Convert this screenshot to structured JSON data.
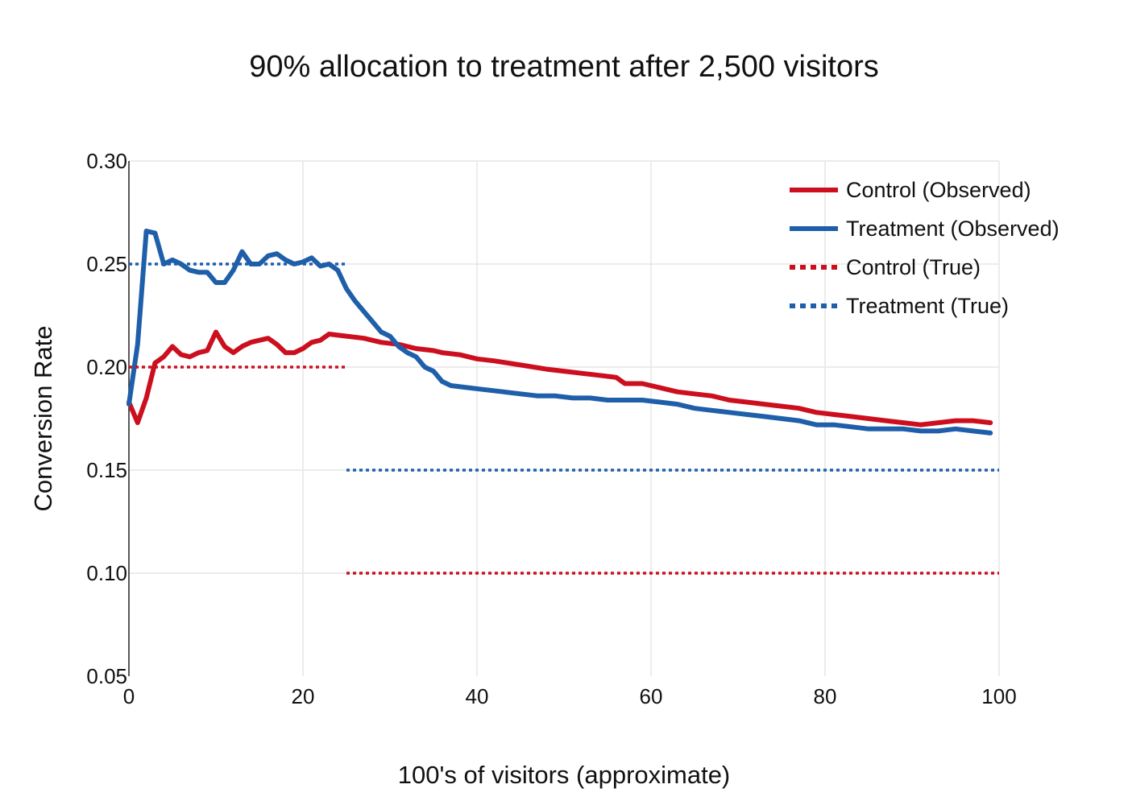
{
  "chart_data": {
    "type": "line",
    "title": "90% allocation to treatment after 2,500 visitors",
    "xlabel": "100's of visitors (approximate)",
    "ylabel": "Conversion Rate",
    "xlim": [
      0,
      100
    ],
    "ylim": [
      0.05,
      0.3
    ],
    "x_ticks": [
      0,
      20,
      40,
      60,
      80,
      100
    ],
    "x_tick_labels": [
      "0",
      "20",
      "40",
      "60",
      "80",
      "100"
    ],
    "y_ticks": [
      0.05,
      0.1,
      0.15,
      0.2,
      0.25,
      0.3
    ],
    "y_tick_labels": [
      "0.05",
      "0.10",
      "0.15",
      "0.20",
      "0.25",
      "0.30"
    ],
    "grid": true,
    "legend_position": "top-right",
    "series": [
      {
        "name": "Control (Observed)",
        "color": "#cc0f1e",
        "style": "solid",
        "points": [
          [
            0,
            0.183
          ],
          [
            1,
            0.173
          ],
          [
            2,
            0.185
          ],
          [
            3,
            0.202
          ],
          [
            4,
            0.205
          ],
          [
            5,
            0.21
          ],
          [
            6,
            0.206
          ],
          [
            7,
            0.205
          ],
          [
            8,
            0.207
          ],
          [
            9,
            0.208
          ],
          [
            10,
            0.217
          ],
          [
            11,
            0.21
          ],
          [
            12,
            0.207
          ],
          [
            13,
            0.21
          ],
          [
            14,
            0.212
          ],
          [
            15,
            0.213
          ],
          [
            16,
            0.214
          ],
          [
            17,
            0.211
          ],
          [
            18,
            0.207
          ],
          [
            19,
            0.207
          ],
          [
            20,
            0.209
          ],
          [
            21,
            0.212
          ],
          [
            22,
            0.213
          ],
          [
            23,
            0.216
          ],
          [
            25,
            0.215
          ],
          [
            27,
            0.214
          ],
          [
            29,
            0.212
          ],
          [
            31,
            0.211
          ],
          [
            33,
            0.209
          ],
          [
            35,
            0.208
          ],
          [
            36,
            0.207
          ],
          [
            38,
            0.206
          ],
          [
            40,
            0.204
          ],
          [
            42,
            0.203
          ],
          [
            45,
            0.201
          ],
          [
            48,
            0.199
          ],
          [
            50,
            0.198
          ],
          [
            52,
            0.197
          ],
          [
            54,
            0.196
          ],
          [
            56,
            0.195
          ],
          [
            57,
            0.192
          ],
          [
            59,
            0.192
          ],
          [
            61,
            0.19
          ],
          [
            63,
            0.188
          ],
          [
            65,
            0.187
          ],
          [
            67,
            0.186
          ],
          [
            69,
            0.184
          ],
          [
            71,
            0.183
          ],
          [
            73,
            0.182
          ],
          [
            75,
            0.181
          ],
          [
            77,
            0.18
          ],
          [
            79,
            0.178
          ],
          [
            81,
            0.177
          ],
          [
            83,
            0.176
          ],
          [
            85,
            0.175
          ],
          [
            87,
            0.174
          ],
          [
            89,
            0.173
          ],
          [
            91,
            0.172
          ],
          [
            93,
            0.173
          ],
          [
            95,
            0.174
          ],
          [
            97,
            0.174
          ],
          [
            99,
            0.173
          ]
        ]
      },
      {
        "name": "Treatment (Observed)",
        "color": "#1f5faa",
        "style": "solid",
        "points": [
          [
            0,
            0.182
          ],
          [
            1,
            0.211
          ],
          [
            2,
            0.266
          ],
          [
            3,
            0.265
          ],
          [
            4,
            0.25
          ],
          [
            5,
            0.252
          ],
          [
            6,
            0.25
          ],
          [
            7,
            0.247
          ],
          [
            8,
            0.246
          ],
          [
            9,
            0.246
          ],
          [
            10,
            0.241
          ],
          [
            11,
            0.241
          ],
          [
            12,
            0.247
          ],
          [
            13,
            0.256
          ],
          [
            14,
            0.25
          ],
          [
            15,
            0.25
          ],
          [
            16,
            0.254
          ],
          [
            17,
            0.255
          ],
          [
            18,
            0.252
          ],
          [
            19,
            0.25
          ],
          [
            20,
            0.251
          ],
          [
            21,
            0.253
          ],
          [
            22,
            0.249
          ],
          [
            23,
            0.25
          ],
          [
            24,
            0.247
          ],
          [
            25,
            0.238
          ],
          [
            26,
            0.232
          ],
          [
            27,
            0.227
          ],
          [
            28,
            0.222
          ],
          [
            29,
            0.217
          ],
          [
            30,
            0.215
          ],
          [
            31,
            0.21
          ],
          [
            32,
            0.207
          ],
          [
            33,
            0.205
          ],
          [
            34,
            0.2
          ],
          [
            35,
            0.198
          ],
          [
            36,
            0.193
          ],
          [
            37,
            0.191
          ],
          [
            39,
            0.19
          ],
          [
            41,
            0.189
          ],
          [
            43,
            0.188
          ],
          [
            45,
            0.187
          ],
          [
            47,
            0.186
          ],
          [
            49,
            0.186
          ],
          [
            51,
            0.185
          ],
          [
            53,
            0.185
          ],
          [
            55,
            0.184
          ],
          [
            57,
            0.184
          ],
          [
            59,
            0.184
          ],
          [
            61,
            0.183
          ],
          [
            63,
            0.182
          ],
          [
            65,
            0.18
          ],
          [
            67,
            0.179
          ],
          [
            69,
            0.178
          ],
          [
            71,
            0.177
          ],
          [
            73,
            0.176
          ],
          [
            75,
            0.175
          ],
          [
            77,
            0.174
          ],
          [
            79,
            0.172
          ],
          [
            81,
            0.172
          ],
          [
            83,
            0.171
          ],
          [
            85,
            0.17
          ],
          [
            87,
            0.17
          ],
          [
            89,
            0.17
          ],
          [
            91,
            0.169
          ],
          [
            93,
            0.169
          ],
          [
            95,
            0.17
          ],
          [
            97,
            0.169
          ],
          [
            99,
            0.168
          ]
        ]
      },
      {
        "name": "Control (True)",
        "color": "#cc0f1e",
        "style": "dotted",
        "segments": [
          [
            [
              0,
              0.2
            ],
            [
              25,
              0.2
            ]
          ],
          [
            [
              25,
              0.1
            ],
            [
              100,
              0.1
            ]
          ]
        ]
      },
      {
        "name": "Treatment (True)",
        "color": "#1f5faa",
        "style": "dotted",
        "segments": [
          [
            [
              0,
              0.25
            ],
            [
              25,
              0.25
            ]
          ],
          [
            [
              25,
              0.15
            ],
            [
              100,
              0.15
            ]
          ]
        ]
      }
    ]
  }
}
